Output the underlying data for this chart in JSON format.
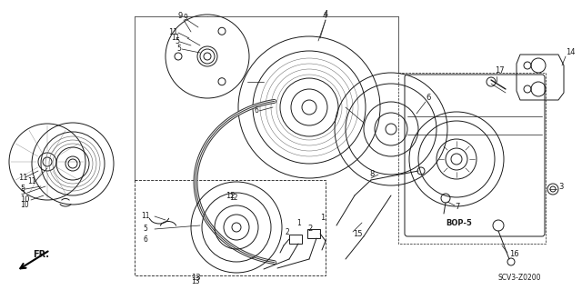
{
  "bg_color": "#ffffff",
  "lc": "#1a1a1a",
  "footnote": "SCV3-Z0200",
  "figsize": [
    6.4,
    3.19
  ],
  "dpi": 100
}
